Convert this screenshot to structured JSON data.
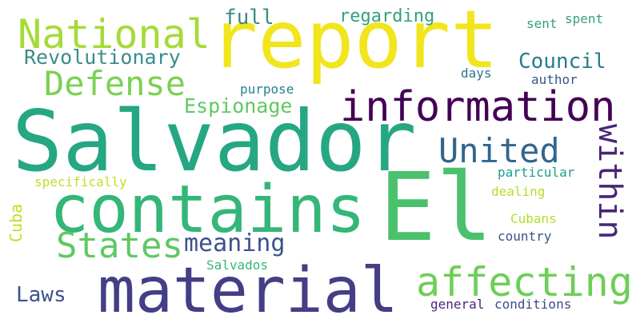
{
  "words": [
    {
      "text": "Salvador",
      "color": "#26a784"
    },
    {
      "text": "report",
      "color": "#f1e51d"
    },
    {
      "text": "El",
      "color": "#4ac16d"
    },
    {
      "text": "material",
      "color": "#433e85"
    },
    {
      "text": "contains",
      "color": "#34b679"
    },
    {
      "text": "information",
      "color": "#440154"
    },
    {
      "text": "affecting",
      "color": "#6ece58"
    },
    {
      "text": "National",
      "color": "#a5db36"
    },
    {
      "text": "Defense",
      "color": "#7ad151"
    },
    {
      "text": "United",
      "color": "#31668e"
    },
    {
      "text": "States",
      "color": "#5ec962"
    },
    {
      "text": "within",
      "color": "#482475"
    },
    {
      "text": "meaning",
      "color": "#3b528b"
    },
    {
      "text": "Espionage",
      "color": "#5ec962"
    },
    {
      "text": "Revolutionary",
      "color": "#3b8b8c"
    },
    {
      "text": "Council",
      "color": "#287c8e"
    },
    {
      "text": "full",
      "color": "#3e8a85"
    },
    {
      "text": "regarding",
      "color": "#35a07e"
    },
    {
      "text": "sent",
      "color": "#35a07e"
    },
    {
      "text": "spent",
      "color": "#35a07e"
    },
    {
      "text": "purpose",
      "color": "#26818e"
    },
    {
      "text": "days",
      "color": "#2a768e"
    },
    {
      "text": "author",
      "color": "#3b528b"
    },
    {
      "text": "Laws",
      "color": "#3b528b"
    },
    {
      "text": "Cuba",
      "color": "#c2df23"
    },
    {
      "text": "specifically",
      "color": "#bddf26"
    },
    {
      "text": "particular",
      "color": "#1f9e89"
    },
    {
      "text": "dealing",
      "color": "#b5de2b"
    },
    {
      "text": "Cubans",
      "color": "#b5de2b"
    },
    {
      "text": "country",
      "color": "#3a548c"
    },
    {
      "text": "Salvados",
      "color": "#35b779"
    },
    {
      "text": "general",
      "color": "#482878"
    },
    {
      "text": "conditions",
      "color": "#3e4989"
    }
  ]
}
